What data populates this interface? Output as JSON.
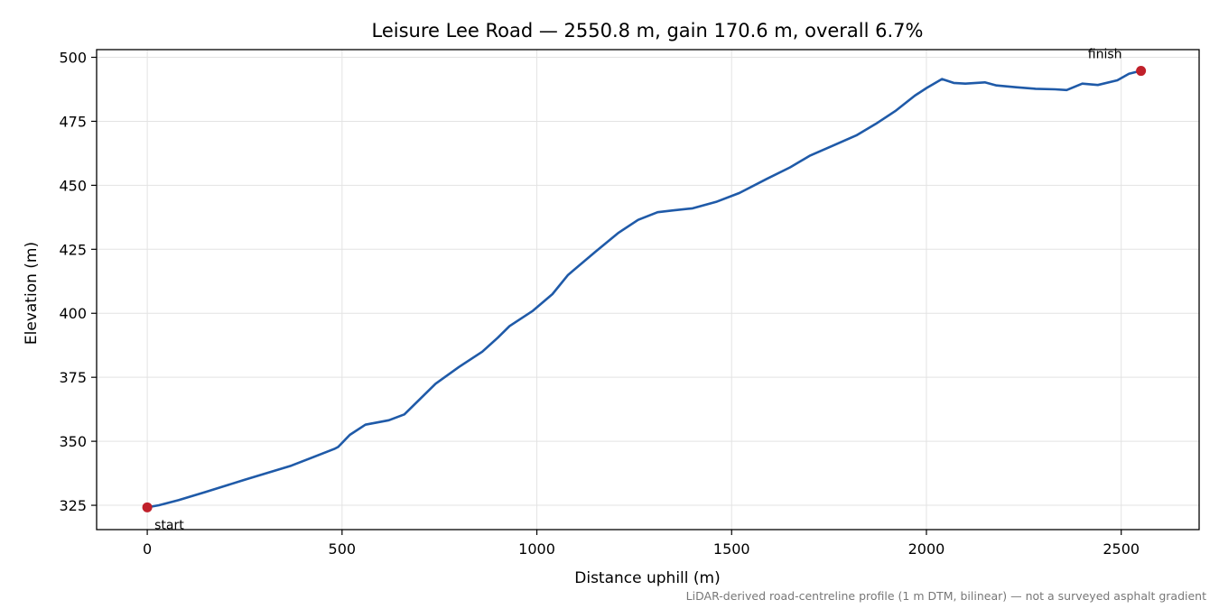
{
  "chart_data": {
    "type": "line",
    "title": "Leisure Lee Road — 2550.8 m, gain 170.6 m, overall 6.7%",
    "xlabel": "Distance uphill (m)",
    "ylabel": "Elevation (m)",
    "xlim": [
      -130,
      2700
    ],
    "ylim": [
      315.5,
      503
    ],
    "x_ticks": [
      0,
      500,
      1000,
      1500,
      2000,
      2500
    ],
    "y_ticks": [
      325,
      350,
      375,
      400,
      425,
      450,
      475,
      500
    ],
    "grid": true,
    "line_color": "#1f5aa8",
    "marker_color": "#c0202a",
    "series": [
      {
        "x": [
          0,
          30,
          80,
          150,
          250,
          370,
          480,
          490,
          520,
          560,
          620,
          660,
          700,
          740,
          800,
          860,
          900,
          930,
          990,
          1040,
          1080,
          1150,
          1210,
          1260,
          1310,
          1350,
          1400,
          1460,
          1520,
          1590,
          1650,
          1700,
          1760,
          1820,
          1870,
          1920,
          1970,
          2000,
          2040,
          2070,
          2100,
          2150,
          2180,
          2230,
          2280,
          2330,
          2360,
          2400,
          2440,
          2490,
          2520,
          2550
        ],
        "y": [
          324.2,
          325.0,
          327.0,
          330.2,
          335.0,
          340.5,
          347.0,
          347.8,
          352.5,
          356.5,
          358.2,
          360.5,
          366.5,
          372.5,
          379.0,
          385.0,
          390.5,
          395.0,
          401.0,
          407.5,
          415.0,
          424.0,
          431.5,
          436.5,
          439.5,
          440.2,
          441.0,
          443.5,
          447.0,
          452.5,
          457.0,
          461.5,
          465.5,
          469.5,
          474.0,
          479.0,
          485.0,
          488.0,
          491.5,
          490.0,
          489.7,
          490.2,
          489.0,
          488.3,
          487.7,
          487.5,
          487.2,
          489.7,
          489.2,
          491.0,
          493.6,
          494.7
        ]
      }
    ],
    "annotations": [
      {
        "text": "start",
        "x": 0,
        "y": 324.2
      },
      {
        "text": "finish",
        "x": 2550.8,
        "y": 494.7
      }
    ],
    "footnote": "LiDAR-derived road-centreline profile (1 m DTM, bilinear) — not a surveyed asphalt gradient"
  }
}
